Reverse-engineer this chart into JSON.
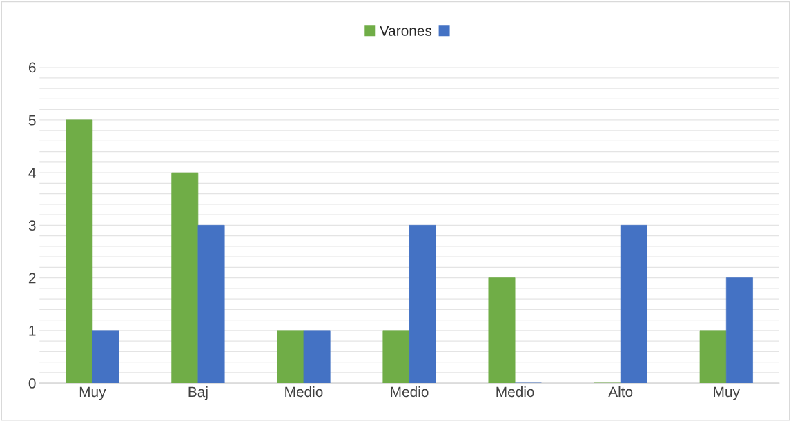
{
  "chart_data": {
    "type": "bar",
    "categories": [
      "Muy",
      "Baj",
      "Medio",
      "Medio",
      "Medio",
      "Alto",
      "Muy"
    ],
    "series": [
      {
        "name": "Varones",
        "color": "#70ad47",
        "values": [
          5,
          4,
          1,
          1,
          2,
          0,
          1
        ]
      },
      {
        "color": "#4472c4",
        "values": [
          1,
          3,
          1,
          3,
          0,
          3,
          2
        ]
      }
    ],
    "ylim": [
      0,
      6
    ],
    "yticks": [
      0,
      {
        "value": 0.2,
        "label": null
      },
      {
        "value": 0.4,
        "label": null
      },
      {
        "value": 0.6,
        "label": null
      },
      {
        "value": 0.8,
        "label": null
      },
      1,
      {
        "value": 1.2,
        "label": null
      },
      {
        "value": 1.4,
        "label": null
      },
      {
        "value": 1.6,
        "label": null
      },
      {
        "value": 1.8,
        "label": null
      },
      2,
      {
        "value": 2.2,
        "label": null
      },
      {
        "value": 2.4,
        "label": null
      },
      {
        "value": 2.6,
        "label": null
      },
      {
        "value": 2.8,
        "label": null
      },
      3,
      {
        "value": 3.2,
        "label": null
      },
      {
        "value": 3.4,
        "label": null
      },
      {
        "value": 3.6,
        "label": null
      },
      {
        "value": 3.8,
        "label": null
      },
      4,
      {
        "value": 4.2,
        "label": null
      },
      {
        "value": 4.4,
        "label": null
      },
      {
        "value": 4.6,
        "label": null
      },
      {
        "value": 4.8,
        "label": null
      },
      5,
      {
        "value": 5.2,
        "label": null
      },
      {
        "value": 5.4,
        "label": null
      },
      {
        "value": 5.6,
        "label": null
      },
      {
        "value": 5.8,
        "label": null
      },
      6
    ],
    "grid": "y",
    "legend": "top"
  }
}
